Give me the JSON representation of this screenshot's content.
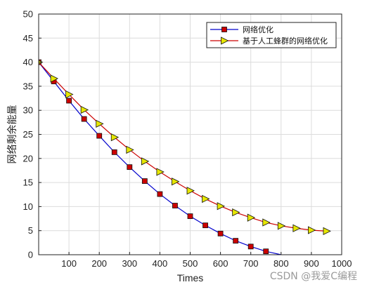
{
  "chart_data": {
    "type": "line",
    "title": "",
    "xlabel": "Times",
    "ylabel": "网络剩余能量",
    "xlim": [
      0,
      1000
    ],
    "ylim": [
      0,
      50
    ],
    "xticks": [
      "100",
      "200",
      "300",
      "400",
      "500",
      "600",
      "700",
      "800",
      "900",
      "1000"
    ],
    "yticks": [
      "0",
      "5",
      "10",
      "15",
      "20",
      "25",
      "30",
      "35",
      "40",
      "45",
      "50"
    ],
    "grid": true,
    "legend_position": "top-right",
    "series": [
      {
        "name": "网络优化",
        "color": "#0000cc",
        "marker": "square",
        "marker_color": "#cc0000",
        "x": [
          0,
          50,
          100,
          150,
          200,
          250,
          300,
          350,
          400,
          450,
          500,
          550,
          600,
          650,
          700,
          750
        ],
        "y": [
          40,
          36,
          32,
          28.2,
          24.7,
          21.3,
          18.2,
          15.3,
          12.6,
          10.2,
          8.0,
          6.1,
          4.4,
          2.9,
          1.7,
          0.7
        ],
        "line_x": [
          0,
          50,
          100,
          150,
          200,
          250,
          300,
          350,
          400,
          450,
          500,
          550,
          600,
          650,
          700,
          750,
          800
        ],
        "line_y": [
          40,
          36,
          32,
          28.2,
          24.7,
          21.3,
          18.2,
          15.3,
          12.6,
          10.2,
          8.0,
          6.1,
          4.4,
          2.9,
          1.7,
          0.7,
          0
        ]
      },
      {
        "name": "基于人工蜂群的网络优化",
        "color": "#cc0000",
        "marker": "triangle-right",
        "marker_color": "#e6e600",
        "x": [
          0,
          50,
          100,
          150,
          200,
          250,
          300,
          350,
          400,
          450,
          500,
          550,
          600,
          650,
          700,
          750,
          800,
          850,
          900,
          950
        ],
        "y": [
          40,
          36.6,
          33.3,
          30.1,
          27.2,
          24.4,
          21.8,
          19.4,
          17.2,
          15.2,
          13.3,
          11.6,
          10.1,
          8.8,
          7.7,
          6.7,
          6.0,
          5.5,
          5.1,
          4.9
        ]
      }
    ]
  },
  "watermark": "CSDN @我爱C编程"
}
